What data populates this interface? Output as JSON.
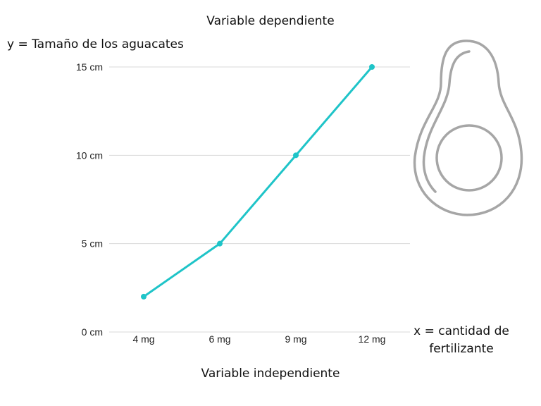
{
  "labels": {
    "top_title": "Variable dependiente",
    "y_label": "y = Tamaño de los aguacates",
    "bottom_title": "Variable independiente",
    "x_label_line1": "x = cantidad de",
    "x_label_line2": "fertilizante"
  },
  "chart_data": {
    "type": "line",
    "categories": [
      "4 mg",
      "6 mg",
      "9 mg",
      "12 mg"
    ],
    "series": [
      {
        "values": [
          2,
          5,
          10,
          15
        ]
      }
    ],
    "y_ticks": [
      "0 cm",
      "5 cm",
      "10 cm",
      "15 cm"
    ],
    "y_tick_values": [
      0,
      5,
      10,
      15
    ],
    "ylim": [
      0,
      15
    ],
    "xlabel": "x = cantidad de fertilizante",
    "ylabel": "y = Tamaño de los aguacates",
    "grid": "horizontal",
    "line_color": "#1fc4c8",
    "grid_color": "#d9d9d9"
  },
  "illustration": {
    "icon": "avocado-icon",
    "stroke_color": "#a6a6a6"
  }
}
